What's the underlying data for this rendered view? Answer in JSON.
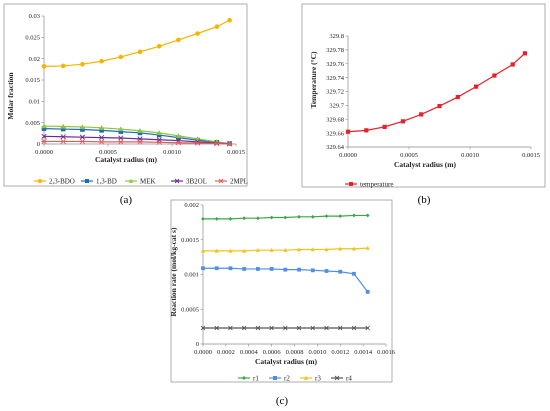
{
  "chart_data": [
    {
      "type": "line",
      "caption": "(a)",
      "xlabel": "Catalyst radius (m)",
      "ylabel": "Molar fraction",
      "xlim": [
        0,
        0.0015
      ],
      "ylim": [
        0,
        0.03
      ],
      "x_ticks": [
        "0.0000",
        "0.0005",
        "0.0010",
        "0.0015"
      ],
      "y_ticks": [
        "0",
        "0.005",
        "0.01",
        "0.015",
        "0.02",
        "0.025",
        "0.03"
      ],
      "grid": false,
      "legend": "bottom",
      "x": [
        0,
        0.00015,
        0.0003,
        0.00045,
        0.0006,
        0.00075,
        0.0009,
        0.00105,
        0.0012,
        0.00135,
        0.00145
      ],
      "series": [
        {
          "name": "2,3-BDO",
          "color": "#f5b400",
          "marker": "circle",
          "values": [
            0.0182,
            0.0183,
            0.0187,
            0.0194,
            0.0204,
            0.0216,
            0.0229,
            0.0244,
            0.0259,
            0.0275,
            0.029
          ]
        },
        {
          "name": "1,3-BD",
          "color": "#1f6db5",
          "marker": "square",
          "values": [
            0.0036,
            0.0035,
            0.0034,
            0.0032,
            0.0029,
            0.0026,
            0.0021,
            0.0015,
            0.0009,
            0.0004,
            0.0001
          ]
        },
        {
          "name": "MEK",
          "color": "#8cc63f",
          "marker": "triangle",
          "values": [
            0.0042,
            0.0041,
            0.004,
            0.0038,
            0.0035,
            0.0031,
            0.0026,
            0.0019,
            0.0012,
            0.0005,
            0.0001
          ]
        },
        {
          "name": "3B2OL",
          "color": "#6a2c91",
          "marker": "x",
          "values": [
            0.0018,
            0.0017,
            0.0016,
            0.0015,
            0.0014,
            0.0012,
            0.001,
            0.0008,
            0.0005,
            0.0002,
            0.0001
          ]
        },
        {
          "name": "2MPL",
          "color": "#e05c5c",
          "marker": "star",
          "values": [
            0.0006,
            0.0006,
            0.0006,
            0.0005,
            0.0005,
            0.0005,
            0.0004,
            0.0003,
            0.0002,
            0.0001,
            0.0
          ]
        }
      ]
    },
    {
      "type": "line",
      "caption": "(b)",
      "xlabel": "Catalyst radius (m)",
      "ylabel": "Temperature (°C)",
      "xlim": [
        0,
        0.0015
      ],
      "ylim": [
        329.64,
        329.8
      ],
      "x_ticks": [
        "0.0000",
        "0.0005",
        "0.0010",
        "0.0015"
      ],
      "y_ticks": [
        "329.64",
        "329.66",
        "329.68",
        "329.7",
        "329.72",
        "329.74",
        "329.76",
        "329.78",
        "329.8"
      ],
      "grid": false,
      "legend": "bottom",
      "x": [
        0,
        0.00015,
        0.0003,
        0.00045,
        0.0006,
        0.00075,
        0.0009,
        0.00105,
        0.0012,
        0.00135,
        0.00145
      ],
      "series": [
        {
          "name": "temperature",
          "color": "#e8202a",
          "marker": "square",
          "values": [
            329.662,
            329.664,
            329.669,
            329.677,
            329.687,
            329.699,
            329.712,
            329.727,
            329.743,
            329.759,
            329.775
          ]
        }
      ]
    },
    {
      "type": "line",
      "caption": "(c)",
      "xlabel": "Catalyst radius (m)",
      "ylabel": "Reaction rate (mol/kg-cat s)",
      "xlim": [
        0,
        0.0016
      ],
      "ylim": [
        0,
        0.002
      ],
      "x_ticks": [
        "0.0000",
        "0.0002",
        "0.0004",
        "0.0006",
        "0.0008",
        "0.0010",
        "0.0012",
        "0.0014",
        "0.0016"
      ],
      "y_ticks": [
        "0",
        "0.0005",
        "0.001",
        "0.0015",
        "0.002"
      ],
      "grid": false,
      "legend": "bottom",
      "x": [
        0,
        0.00012,
        0.00024,
        0.00036,
        0.00048,
        0.0006,
        0.00072,
        0.00084,
        0.00096,
        0.00108,
        0.0012,
        0.00132,
        0.00144
      ],
      "series": [
        {
          "name": "r1",
          "color": "#3aa64a",
          "marker": "diamond",
          "values": [
            0.0018,
            0.0018,
            0.0018,
            0.00181,
            0.00181,
            0.00182,
            0.00182,
            0.00183,
            0.00183,
            0.00184,
            0.00184,
            0.00185,
            0.00185
          ]
        },
        {
          "name": "r2",
          "color": "#4f8fe6",
          "marker": "square",
          "values": [
            0.00109,
            0.00109,
            0.00109,
            0.00108,
            0.00108,
            0.00108,
            0.00107,
            0.00107,
            0.00106,
            0.00105,
            0.00104,
            0.00101,
            0.00075
          ]
        },
        {
          "name": "r3",
          "color": "#f0c419",
          "marker": "triangle",
          "values": [
            0.00134,
            0.00134,
            0.00134,
            0.00134,
            0.00135,
            0.00135,
            0.00135,
            0.00136,
            0.00136,
            0.00136,
            0.00137,
            0.00137,
            0.00138
          ]
        },
        {
          "name": "r4",
          "color": "#555555",
          "marker": "x",
          "values": [
            0.00023,
            0.00023,
            0.00023,
            0.00023,
            0.00023,
            0.00023,
            0.00023,
            0.00023,
            0.00023,
            0.00023,
            0.00023,
            0.00023,
            0.00023
          ]
        }
      ]
    }
  ]
}
